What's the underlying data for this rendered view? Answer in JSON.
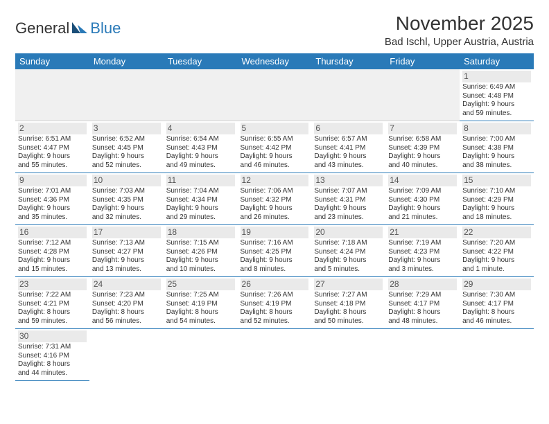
{
  "logo": {
    "part1": "General",
    "part2": "Blue"
  },
  "title": "November 2025",
  "subtitle": "Bad Ischl, Upper Austria, Austria",
  "colors": {
    "accent": "#2a7ab8",
    "header_text": "#ffffff",
    "text": "#333333",
    "empty_bg": "#f0f0f0",
    "daynum_bg": "#eaeaea"
  },
  "weekdays": [
    "Sunday",
    "Monday",
    "Tuesday",
    "Wednesday",
    "Thursday",
    "Friday",
    "Saturday"
  ],
  "weeks": [
    [
      null,
      null,
      null,
      null,
      null,
      null,
      {
        "n": "1",
        "sr": "Sunrise: 6:49 AM",
        "ss": "Sunset: 4:48 PM",
        "d1": "Daylight: 9 hours",
        "d2": "and 59 minutes."
      }
    ],
    [
      {
        "n": "2",
        "sr": "Sunrise: 6:51 AM",
        "ss": "Sunset: 4:47 PM",
        "d1": "Daylight: 9 hours",
        "d2": "and 55 minutes."
      },
      {
        "n": "3",
        "sr": "Sunrise: 6:52 AM",
        "ss": "Sunset: 4:45 PM",
        "d1": "Daylight: 9 hours",
        "d2": "and 52 minutes."
      },
      {
        "n": "4",
        "sr": "Sunrise: 6:54 AM",
        "ss": "Sunset: 4:43 PM",
        "d1": "Daylight: 9 hours",
        "d2": "and 49 minutes."
      },
      {
        "n": "5",
        "sr": "Sunrise: 6:55 AM",
        "ss": "Sunset: 4:42 PM",
        "d1": "Daylight: 9 hours",
        "d2": "and 46 minutes."
      },
      {
        "n": "6",
        "sr": "Sunrise: 6:57 AM",
        "ss": "Sunset: 4:41 PM",
        "d1": "Daylight: 9 hours",
        "d2": "and 43 minutes."
      },
      {
        "n": "7",
        "sr": "Sunrise: 6:58 AM",
        "ss": "Sunset: 4:39 PM",
        "d1": "Daylight: 9 hours",
        "d2": "and 40 minutes."
      },
      {
        "n": "8",
        "sr": "Sunrise: 7:00 AM",
        "ss": "Sunset: 4:38 PM",
        "d1": "Daylight: 9 hours",
        "d2": "and 38 minutes."
      }
    ],
    [
      {
        "n": "9",
        "sr": "Sunrise: 7:01 AM",
        "ss": "Sunset: 4:36 PM",
        "d1": "Daylight: 9 hours",
        "d2": "and 35 minutes."
      },
      {
        "n": "10",
        "sr": "Sunrise: 7:03 AM",
        "ss": "Sunset: 4:35 PM",
        "d1": "Daylight: 9 hours",
        "d2": "and 32 minutes."
      },
      {
        "n": "11",
        "sr": "Sunrise: 7:04 AM",
        "ss": "Sunset: 4:34 PM",
        "d1": "Daylight: 9 hours",
        "d2": "and 29 minutes."
      },
      {
        "n": "12",
        "sr": "Sunrise: 7:06 AM",
        "ss": "Sunset: 4:32 PM",
        "d1": "Daylight: 9 hours",
        "d2": "and 26 minutes."
      },
      {
        "n": "13",
        "sr": "Sunrise: 7:07 AM",
        "ss": "Sunset: 4:31 PM",
        "d1": "Daylight: 9 hours",
        "d2": "and 23 minutes."
      },
      {
        "n": "14",
        "sr": "Sunrise: 7:09 AM",
        "ss": "Sunset: 4:30 PM",
        "d1": "Daylight: 9 hours",
        "d2": "and 21 minutes."
      },
      {
        "n": "15",
        "sr": "Sunrise: 7:10 AM",
        "ss": "Sunset: 4:29 PM",
        "d1": "Daylight: 9 hours",
        "d2": "and 18 minutes."
      }
    ],
    [
      {
        "n": "16",
        "sr": "Sunrise: 7:12 AM",
        "ss": "Sunset: 4:28 PM",
        "d1": "Daylight: 9 hours",
        "d2": "and 15 minutes."
      },
      {
        "n": "17",
        "sr": "Sunrise: 7:13 AM",
        "ss": "Sunset: 4:27 PM",
        "d1": "Daylight: 9 hours",
        "d2": "and 13 minutes."
      },
      {
        "n": "18",
        "sr": "Sunrise: 7:15 AM",
        "ss": "Sunset: 4:26 PM",
        "d1": "Daylight: 9 hours",
        "d2": "and 10 minutes."
      },
      {
        "n": "19",
        "sr": "Sunrise: 7:16 AM",
        "ss": "Sunset: 4:25 PM",
        "d1": "Daylight: 9 hours",
        "d2": "and 8 minutes."
      },
      {
        "n": "20",
        "sr": "Sunrise: 7:18 AM",
        "ss": "Sunset: 4:24 PM",
        "d1": "Daylight: 9 hours",
        "d2": "and 5 minutes."
      },
      {
        "n": "21",
        "sr": "Sunrise: 7:19 AM",
        "ss": "Sunset: 4:23 PM",
        "d1": "Daylight: 9 hours",
        "d2": "and 3 minutes."
      },
      {
        "n": "22",
        "sr": "Sunrise: 7:20 AM",
        "ss": "Sunset: 4:22 PM",
        "d1": "Daylight: 9 hours",
        "d2": "and 1 minute."
      }
    ],
    [
      {
        "n": "23",
        "sr": "Sunrise: 7:22 AM",
        "ss": "Sunset: 4:21 PM",
        "d1": "Daylight: 8 hours",
        "d2": "and 59 minutes."
      },
      {
        "n": "24",
        "sr": "Sunrise: 7:23 AM",
        "ss": "Sunset: 4:20 PM",
        "d1": "Daylight: 8 hours",
        "d2": "and 56 minutes."
      },
      {
        "n": "25",
        "sr": "Sunrise: 7:25 AM",
        "ss": "Sunset: 4:19 PM",
        "d1": "Daylight: 8 hours",
        "d2": "and 54 minutes."
      },
      {
        "n": "26",
        "sr": "Sunrise: 7:26 AM",
        "ss": "Sunset: 4:19 PM",
        "d1": "Daylight: 8 hours",
        "d2": "and 52 minutes."
      },
      {
        "n": "27",
        "sr": "Sunrise: 7:27 AM",
        "ss": "Sunset: 4:18 PM",
        "d1": "Daylight: 8 hours",
        "d2": "and 50 minutes."
      },
      {
        "n": "28",
        "sr": "Sunrise: 7:29 AM",
        "ss": "Sunset: 4:17 PM",
        "d1": "Daylight: 8 hours",
        "d2": "and 48 minutes."
      },
      {
        "n": "29",
        "sr": "Sunrise: 7:30 AM",
        "ss": "Sunset: 4:17 PM",
        "d1": "Daylight: 8 hours",
        "d2": "and 46 minutes."
      }
    ],
    [
      {
        "n": "30",
        "sr": "Sunrise: 7:31 AM",
        "ss": "Sunset: 4:16 PM",
        "d1": "Daylight: 8 hours",
        "d2": "and 44 minutes."
      },
      null,
      null,
      null,
      null,
      null,
      null
    ]
  ]
}
